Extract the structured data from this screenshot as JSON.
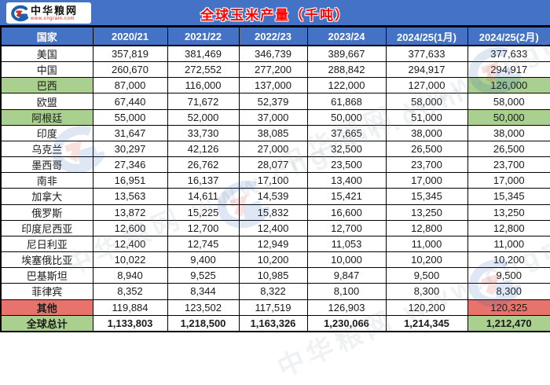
{
  "header": {
    "logo_name": "中华粮网",
    "logo_url": "www.cngrain.com",
    "title": "全球玉米产量（千吨）"
  },
  "colors": {
    "band_blue": "#4472c4",
    "green": "#a9d08e",
    "red": "#e8736c",
    "title_red": "#fe0000",
    "border": "#000000"
  },
  "watermark_text": "中华粮网 www.cngrain.com",
  "chart_data": {
    "type": "table",
    "title": "全球玉米产量（千吨）",
    "columns": [
      "国家",
      "2020/21",
      "2021/22",
      "2022/23",
      "2023/24",
      "2024/25(1月)",
      "2024/25(2月)"
    ],
    "rows": [
      {
        "name": "美国",
        "values": [
          357819,
          381469,
          346739,
          389667,
          377633,
          377633
        ]
      },
      {
        "name": "中国",
        "values": [
          260670,
          272552,
          277200,
          288842,
          294917,
          294917
        ]
      },
      {
        "name": "巴西",
        "values": [
          87000,
          116000,
          137000,
          122000,
          127000,
          126000
        ],
        "name_bg": "green",
        "last_bg": "green"
      },
      {
        "name": "欧盟",
        "values": [
          67440,
          71672,
          52379,
          61868,
          58000,
          58000
        ]
      },
      {
        "name": "阿根廷",
        "values": [
          55000,
          52000,
          37000,
          50000,
          51000,
          50000
        ],
        "name_bg": "green",
        "last_bg": "green"
      },
      {
        "name": "印度",
        "values": [
          31647,
          33730,
          38085,
          37665,
          38000,
          38000
        ]
      },
      {
        "name": "乌克兰",
        "values": [
          30297,
          42126,
          27000,
          32500,
          26500,
          26500
        ]
      },
      {
        "name": "墨西哥",
        "values": [
          27346,
          26762,
          28077,
          23500,
          23700,
          23700
        ]
      },
      {
        "name": "南非",
        "values": [
          16951,
          16137,
          17100,
          13400,
          17000,
          17000
        ]
      },
      {
        "name": "加拿大",
        "values": [
          13563,
          14611,
          14539,
          15421,
          15345,
          15345
        ]
      },
      {
        "name": "俄罗斯",
        "values": [
          13872,
          15225,
          15832,
          16600,
          13250,
          13250
        ]
      },
      {
        "name": "印度尼西亚",
        "values": [
          12600,
          12700,
          12400,
          12700,
          12800,
          12800
        ]
      },
      {
        "name": "尼日利亚",
        "values": [
          12400,
          12745,
          12949,
          11053,
          11000,
          11000
        ]
      },
      {
        "name": "埃塞俄比亚",
        "values": [
          10022,
          9400,
          10200,
          10000,
          10200,
          10200
        ]
      },
      {
        "name": "巴基斯坦",
        "values": [
          8940,
          9525,
          10985,
          9847,
          9500,
          9500
        ]
      },
      {
        "name": "菲律宾",
        "values": [
          8352,
          8344,
          8322,
          8100,
          8300,
          8300
        ]
      },
      {
        "name": "其他",
        "values": [
          119884,
          123502,
          117519,
          126903,
          120200,
          120325
        ],
        "name_bg": "red",
        "last_bg": "red",
        "name_bold": true
      },
      {
        "name": "全球总计",
        "values": [
          1133803,
          1218500,
          1163326,
          1230066,
          1214345,
          1212470
        ],
        "name_bg": "green",
        "last_bg": "green",
        "bold": true
      }
    ]
  }
}
